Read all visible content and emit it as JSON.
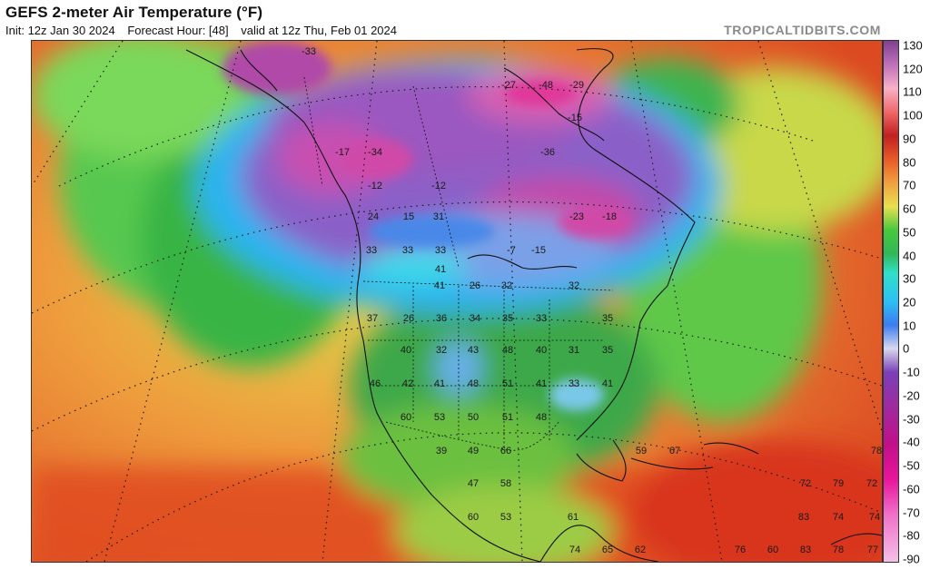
{
  "header": {
    "title": "GEFS 2-meter Air Temperature (°F)",
    "init": "Init: 12z Jan 30 2024",
    "forecast_hour": "Forecast Hour: [48]",
    "valid": "valid at 12z Thu, Feb 01 2024"
  },
  "credit": "TROPICALTIDBITS.COM",
  "colorbar": {
    "ticks": [
      "130",
      "120",
      "110",
      "100",
      "90",
      "80",
      "70",
      "60",
      "50",
      "40",
      "30",
      "20",
      "10",
      "0",
      "-10",
      "-20",
      "-30",
      "-40",
      "-50",
      "-60",
      "-70",
      "-80",
      "-90"
    ],
    "range": [
      -90,
      130
    ],
    "stops": [
      {
        "v": -90,
        "c": "#f4c0e6"
      },
      {
        "v": -70,
        "c": "#f070c8"
      },
      {
        "v": -55,
        "c": "#e8149a"
      },
      {
        "v": -40,
        "c": "#c0108a"
      },
      {
        "v": -25,
        "c": "#a02a9e"
      },
      {
        "v": -10,
        "c": "#7a40b8"
      },
      {
        "v": 0,
        "c": "#d8d8ee"
      },
      {
        "v": 10,
        "c": "#3c7cf0"
      },
      {
        "v": 20,
        "c": "#2cc0f4"
      },
      {
        "v": 32,
        "c": "#30e0c8"
      },
      {
        "v": 40,
        "c": "#30b858"
      },
      {
        "v": 50,
        "c": "#48c83c"
      },
      {
        "v": 60,
        "c": "#e8e050"
      },
      {
        "v": 70,
        "c": "#f0a040"
      },
      {
        "v": 80,
        "c": "#e85a28"
      },
      {
        "v": 90,
        "c": "#c02020"
      },
      {
        "v": 100,
        "c": "#f06868"
      },
      {
        "v": 110,
        "c": "#f8b0c8"
      },
      {
        "v": 120,
        "c": "#c070b8"
      },
      {
        "v": 130,
        "c": "#804090"
      }
    ]
  },
  "map_labels": [
    {
      "t": "-33"
    },
    {
      "t": "-27"
    },
    {
      "t": "-48"
    },
    {
      "t": "-29"
    },
    {
      "t": "-15"
    },
    {
      "t": "-17"
    },
    {
      "t": "-34"
    },
    {
      "t": "-36"
    },
    {
      "t": "-12"
    },
    {
      "t": "-12"
    },
    {
      "t": "24"
    },
    {
      "t": "15"
    },
    {
      "t": "31"
    },
    {
      "t": "-7"
    },
    {
      "t": "-15"
    },
    {
      "t": "-23"
    },
    {
      "t": "-18"
    },
    {
      "t": "33"
    },
    {
      "t": "33"
    },
    {
      "t": "33"
    },
    {
      "t": "41"
    },
    {
      "t": "41"
    },
    {
      "t": "26"
    },
    {
      "t": "32"
    },
    {
      "t": "32"
    },
    {
      "t": "37"
    },
    {
      "t": "26"
    },
    {
      "t": "36"
    },
    {
      "t": "34"
    },
    {
      "t": "35"
    },
    {
      "t": "33"
    },
    {
      "t": "35"
    },
    {
      "t": "40"
    },
    {
      "t": "32"
    },
    {
      "t": "43"
    },
    {
      "t": "48"
    },
    {
      "t": "40"
    },
    {
      "t": "31"
    },
    {
      "t": "35"
    },
    {
      "t": "46"
    },
    {
      "t": "42"
    },
    {
      "t": "41"
    },
    {
      "t": "48"
    },
    {
      "t": "51"
    },
    {
      "t": "41"
    },
    {
      "t": "33"
    },
    {
      "t": "41"
    },
    {
      "t": "60"
    },
    {
      "t": "53"
    },
    {
      "t": "50"
    },
    {
      "t": "51"
    },
    {
      "t": "48"
    },
    {
      "t": "39"
    },
    {
      "t": "49"
    },
    {
      "t": "66"
    },
    {
      "t": "47"
    },
    {
      "t": "58"
    },
    {
      "t": "60"
    },
    {
      "t": "53"
    },
    {
      "t": "61"
    },
    {
      "t": "59"
    },
    {
      "t": "67"
    },
    {
      "t": "78"
    },
    {
      "t": "72"
    },
    {
      "t": "79"
    },
    {
      "t": "72"
    },
    {
      "t": "83"
    },
    {
      "t": "74"
    },
    {
      "t": "74"
    },
    {
      "t": "74"
    },
    {
      "t": "65"
    },
    {
      "t": "62"
    },
    {
      "t": "76"
    },
    {
      "t": "60"
    },
    {
      "t": "83"
    },
    {
      "t": "78"
    },
    {
      "t": "77"
    }
  ]
}
